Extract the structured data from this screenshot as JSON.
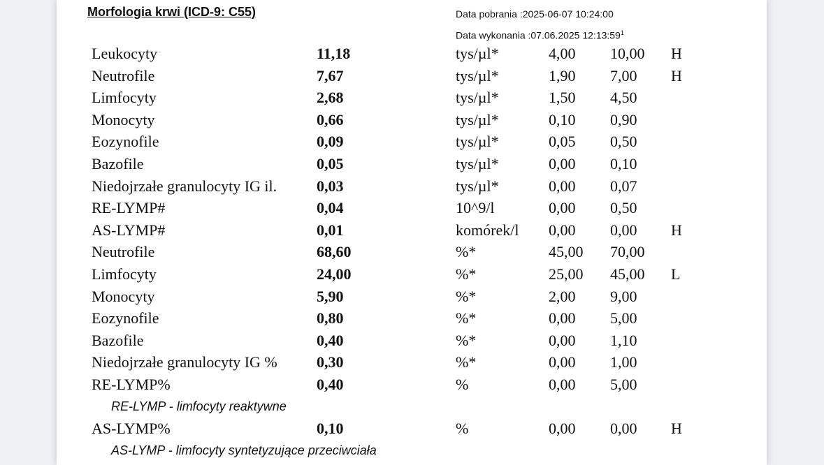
{
  "colors": {
    "background": "#eff0f4",
    "page": "#ffffff",
    "text": "#111111"
  },
  "header": {
    "title": "Morfologia krwi (ICD-9: C55)",
    "collection_date": "Data pobrania :2025-06-07 10:24:00",
    "execution_date": "Data wykonania :07.06.2025 12:13:59",
    "execution_date_superscript": "1"
  },
  "results": {
    "rows": [
      {
        "name": "Leukocyty",
        "value": "11,18",
        "unit": "tys/µl*",
        "low": "4,00",
        "high": "10,00",
        "flag": "H"
      },
      {
        "name": "Neutrofile",
        "value": "7,67",
        "unit": "tys/µl*",
        "low": "1,90",
        "high": "7,00",
        "flag": "H"
      },
      {
        "name": "Limfocyty",
        "value": "2,68",
        "unit": "tys/µl*",
        "low": "1,50",
        "high": "4,50",
        "flag": ""
      },
      {
        "name": "Monocyty",
        "value": "0,66",
        "unit": "tys/µl*",
        "low": "0,10",
        "high": "0,90",
        "flag": ""
      },
      {
        "name": "Eozynofile",
        "value": "0,09",
        "unit": "tys/µl*",
        "low": "0,05",
        "high": "0,50",
        "flag": ""
      },
      {
        "name": "Bazofile",
        "value": "0,05",
        "unit": "tys/µl*",
        "low": "0,00",
        "high": "0,10",
        "flag": ""
      },
      {
        "name": "Niedojrzałe granulocyty IG il.",
        "value": "0,03",
        "unit": "tys/µl*",
        "low": "0,00",
        "high": "0,07",
        "flag": ""
      },
      {
        "name": "RE-LYMP#",
        "value": "0,04",
        "unit": "10^9/l",
        "low": "0,00",
        "high": "0,50",
        "flag": ""
      },
      {
        "name": "AS-LYMP#",
        "value": "0,01",
        "unit": "komórek/l",
        "low": "0,00",
        "high": "0,00",
        "flag": "H"
      },
      {
        "name": "Neutrofile",
        "value": "68,60",
        "unit": "%*",
        "low": "45,00",
        "high": "70,00",
        "flag": ""
      },
      {
        "name": "Limfocyty",
        "value": "24,00",
        "unit": "%*",
        "low": "25,00",
        "high": "45,00",
        "flag": "L"
      },
      {
        "name": "Monocyty",
        "value": "5,90",
        "unit": "%*",
        "low": "2,00",
        "high": "9,00",
        "flag": ""
      },
      {
        "name": "Eozynofile",
        "value": "0,80",
        "unit": "%*",
        "low": "0,00",
        "high": "5,00",
        "flag": ""
      },
      {
        "name": "Bazofile",
        "value": "0,40",
        "unit": "%*",
        "low": "0,00",
        "high": "1,10",
        "flag": ""
      },
      {
        "name": "Niedojrzałe granulocyty IG %",
        "value": "0,30",
        "unit": "%*",
        "low": "0,00",
        "high": "1,00",
        "flag": ""
      },
      {
        "name": "RE-LYMP%",
        "value": "0,40",
        "unit": "%",
        "low": "0,00",
        "high": "5,00",
        "flag": "",
        "note": "RE-LYMP - limfocyty reaktywne"
      },
      {
        "name": "AS-LYMP%",
        "value": "0,10",
        "unit": "%",
        "low": "0,00",
        "high": "0,00",
        "flag": "H",
        "note": "AS-LYMP - limfocyty syntetyzujące przeciwciała"
      }
    ]
  }
}
